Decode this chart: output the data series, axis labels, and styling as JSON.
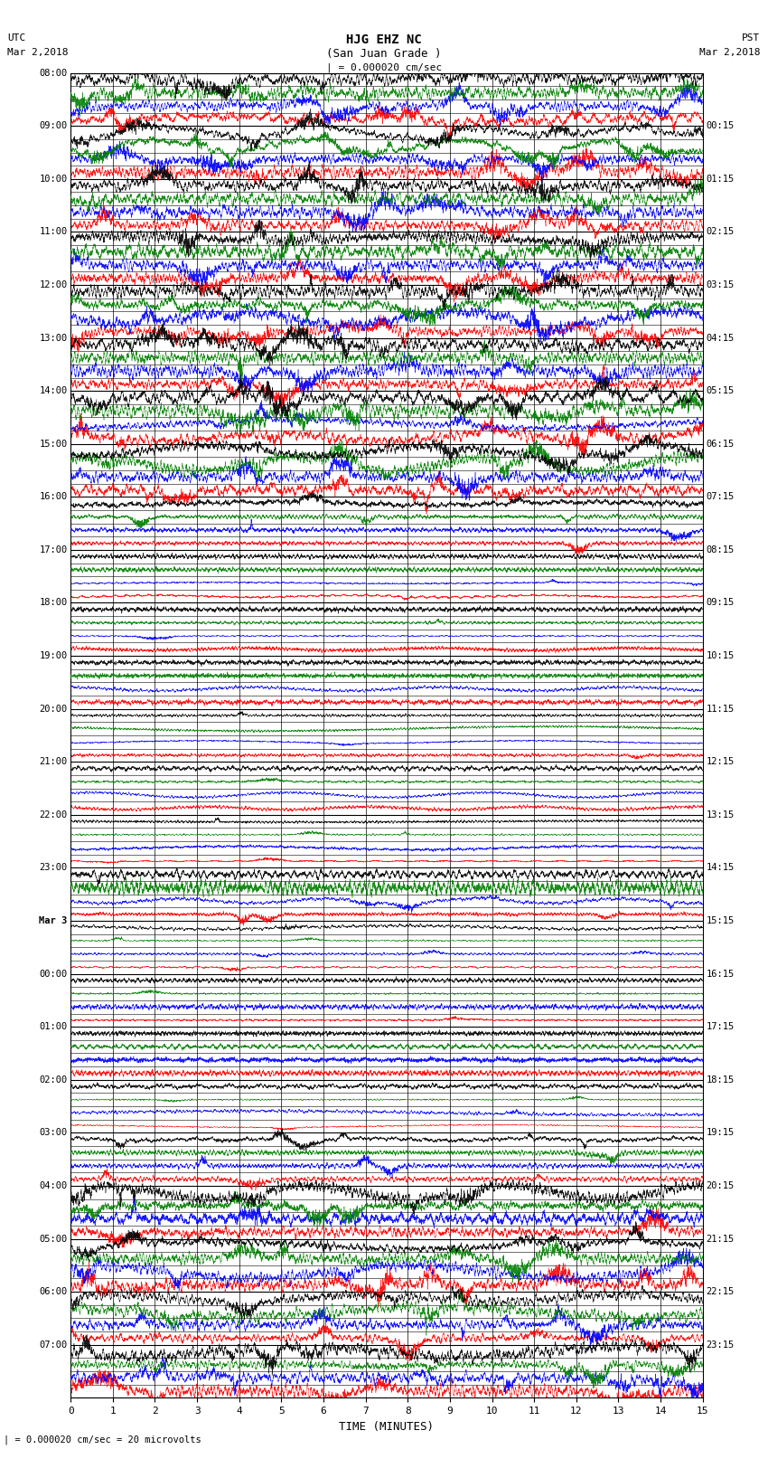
{
  "title_line1": "HJG EHZ NC",
  "title_line2": "(San Juan Grade )",
  "title_line3": "| = 0.000020 cm/sec",
  "left_header_line1": "UTC",
  "left_header_line2": "Mar 2,2018",
  "right_header_line1": "PST",
  "right_header_line2": "Mar 2,2018",
  "utc_labels": [
    "08:00",
    "09:00",
    "10:00",
    "11:00",
    "12:00",
    "13:00",
    "14:00",
    "15:00",
    "16:00",
    "17:00",
    "18:00",
    "19:00",
    "20:00",
    "21:00",
    "22:00",
    "23:00",
    "Mar 3",
    "00:00",
    "01:00",
    "02:00",
    "03:00",
    "04:00",
    "05:00",
    "06:00",
    "07:00"
  ],
  "pst_labels": [
    "00:15",
    "01:15",
    "02:15",
    "03:15",
    "04:15",
    "05:15",
    "06:15",
    "07:15",
    "08:15",
    "09:15",
    "10:15",
    "11:15",
    "12:15",
    "13:15",
    "14:15",
    "15:15",
    "16:15",
    "17:15",
    "18:15",
    "19:15",
    "20:15",
    "21:15",
    "22:15",
    "23:15"
  ],
  "xlabel": "TIME (MINUTES)",
  "xmin": 0,
  "xmax": 15,
  "xticks": [
    0,
    1,
    2,
    3,
    4,
    5,
    6,
    7,
    8,
    9,
    10,
    11,
    12,
    13,
    14,
    15
  ],
  "scale_label": "| = 0.000020 cm/sec = 20 microvolts",
  "bg_color": "#ffffff",
  "grid_color": "#000000",
  "colors": [
    "black",
    "red",
    "blue",
    "green"
  ],
  "num_rows": 25,
  "seed": 42,
  "sub_rows_per_hour": 4,
  "activity_levels": [
    4.0,
    3.5,
    3.5,
    3.0,
    3.5,
    3.0,
    4.0,
    2.5,
    0.8,
    0.15,
    0.05,
    0.15,
    0.05,
    0.08,
    0.08,
    0.8,
    0.5,
    0.05,
    0.05,
    0.5,
    0.8,
    2.5,
    3.0,
    3.5,
    3.0
  ]
}
